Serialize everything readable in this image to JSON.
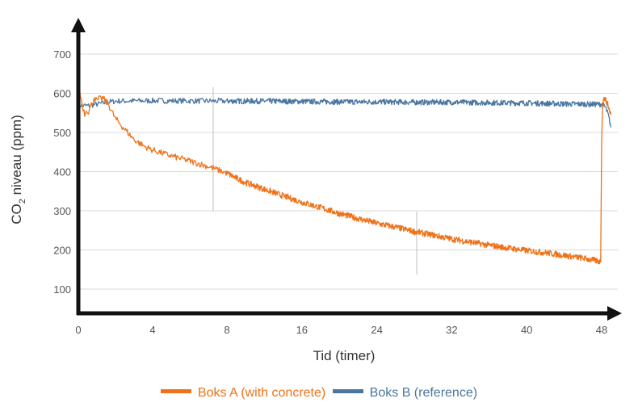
{
  "chart_data": {
    "type": "line",
    "xlabel": "Tid (timer)",
    "ylabel": "CO",
    "ylabel_sub": "2",
    "ylabel_rest": " niveau (ppm)",
    "x_ticks": [
      0,
      4,
      8,
      16,
      24,
      32,
      40,
      48
    ],
    "y_ticks": [
      100,
      200,
      300,
      400,
      500,
      600,
      700
    ],
    "ylim": [
      30,
      790
    ],
    "grid": "horizontal",
    "legend_position": "bottom-center",
    "series": [
      {
        "name": "Boks A (with concrete)",
        "color": "#ee7219",
        "x": [
          0,
          0.07,
          0.15,
          0.25,
          0.35,
          0.45,
          0.55,
          0.65,
          0.75,
          0.85,
          1.0,
          1.1,
          1.3,
          1.6,
          2.0,
          2.5,
          3.0,
          3.5,
          4.0,
          5.0,
          6.0,
          7.0,
          8.0,
          9.0,
          10,
          12,
          14,
          16,
          18,
          20,
          22,
          24,
          26,
          28,
          30,
          32,
          34,
          36,
          38,
          40,
          42,
          44,
          46,
          47.5,
          47.9,
          48.0,
          48.1,
          48.3,
          48.6,
          49
        ],
        "y": [
          578,
          605,
          585,
          562,
          548,
          560,
          552,
          566,
          575,
          590,
          580,
          585,
          588,
          574,
          535,
          508,
          482,
          466,
          455,
          440,
          427,
          413,
          396,
          383,
          372,
          355,
          338,
          322,
          308,
          293,
          280,
          268,
          258,
          247,
          238,
          228,
          220,
          212,
          205,
          198,
          193,
          186,
          179,
          172,
          170,
          480,
          580,
          588,
          575,
          545
        ]
      },
      {
        "name": "Boks B (reference)",
        "color": "#4a76a0",
        "x": [
          0,
          0.5,
          1.0,
          1.5,
          2,
          4,
          8,
          12,
          16,
          20,
          24,
          28,
          32,
          36,
          40,
          44,
          47,
          48,
          48.4,
          48.7,
          49
        ],
        "y": [
          570,
          568,
          572,
          576,
          580,
          581,
          580,
          580,
          579,
          578,
          578,
          577,
          577,
          576,
          575,
          573,
          572,
          572,
          565,
          545,
          513
        ]
      }
    ]
  }
}
